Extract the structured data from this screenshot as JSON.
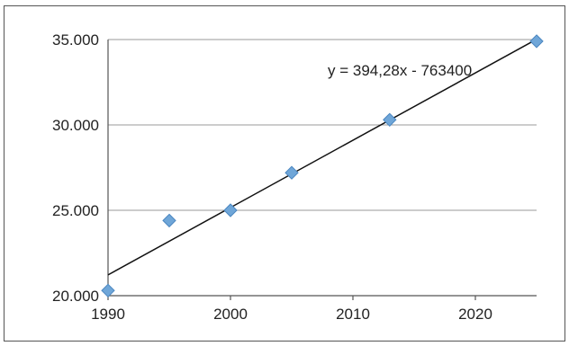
{
  "chart_data": {
    "type": "scatter",
    "title": "",
    "xlabel": "",
    "ylabel": "",
    "xlim": [
      1990,
      2025
    ],
    "ylim": [
      20000,
      35000
    ],
    "x_ticks": [
      1990,
      2000,
      2010,
      2020
    ],
    "x_tick_labels": [
      "1990",
      "2000",
      "2010",
      "2020"
    ],
    "y_ticks": [
      20000,
      25000,
      30000,
      35000
    ],
    "y_tick_labels": [
      "20.000",
      "25.000",
      "30.000",
      "35.000"
    ],
    "grid": "horizontal",
    "legend": "none",
    "marker_color": "#6fa6d8",
    "trendline_color": "#111111",
    "series": [
      {
        "x": [
          1990,
          1995,
          2000,
          2005,
          2013,
          2025
        ],
        "y": [
          20300,
          24400,
          25000,
          27200,
          30300,
          34900
        ]
      }
    ],
    "trendline": {
      "type": "linear",
      "slope": 394.28,
      "intercept": -763400,
      "equation_label": "y = 394,28x - 763400"
    }
  }
}
